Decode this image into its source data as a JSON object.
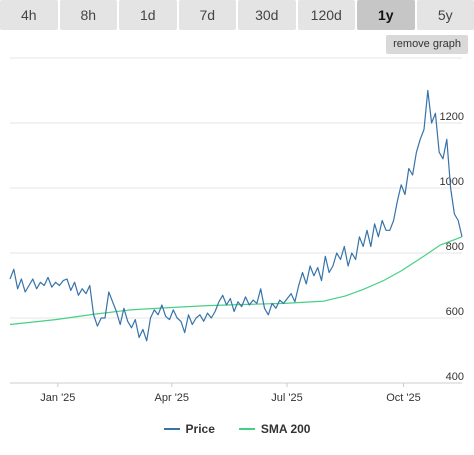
{
  "tabs": [
    {
      "label": "4h",
      "active": false
    },
    {
      "label": "8h",
      "active": false
    },
    {
      "label": "1d",
      "active": false
    },
    {
      "label": "7d",
      "active": false
    },
    {
      "label": "30d",
      "active": false
    },
    {
      "label": "120d",
      "active": false
    },
    {
      "label": "1y",
      "active": true
    },
    {
      "label": "5y",
      "active": false
    }
  ],
  "remove_graph_label": "remove graph",
  "colors": {
    "price": "#3673a9",
    "sma": "#45d185",
    "grid": "#e6e6e6",
    "axis": "#cccccc",
    "text": "#333333"
  },
  "chart_data": {
    "type": "line",
    "title": "",
    "xlabel": "",
    "ylabel": "",
    "x_ticks": [
      "Jan '25",
      "Apr '25",
      "Jul '25",
      "Oct '25"
    ],
    "y_ticks": [
      400,
      600,
      800,
      1000,
      1200
    ],
    "ylim": [
      400,
      1400
    ],
    "xlim": [
      "2024-12-10",
      "2025-12-02"
    ],
    "grid": true,
    "legend_position": "bottom",
    "series": [
      {
        "name": "Price",
        "color": "#3673a9",
        "x": [
          "2024-12-10",
          "2024-12-13",
          "2024-12-16",
          "2024-12-19",
          "2024-12-22",
          "2024-12-25",
          "2024-12-28",
          "2024-12-31",
          "2025-01-03",
          "2025-01-06",
          "2025-01-09",
          "2025-01-12",
          "2025-01-15",
          "2025-01-18",
          "2025-01-21",
          "2025-01-24",
          "2025-01-27",
          "2025-01-30",
          "2025-02-02",
          "2025-02-05",
          "2025-02-08",
          "2025-02-11",
          "2025-02-14",
          "2025-02-17",
          "2025-02-20",
          "2025-02-23",
          "2025-02-26",
          "2025-03-01",
          "2025-03-04",
          "2025-03-07",
          "2025-03-10",
          "2025-03-13",
          "2025-03-16",
          "2025-03-19",
          "2025-03-22",
          "2025-03-25",
          "2025-03-28",
          "2025-03-31",
          "2025-04-03",
          "2025-04-06",
          "2025-04-09",
          "2025-04-12",
          "2025-04-15",
          "2025-04-18",
          "2025-04-21",
          "2025-04-24",
          "2025-04-27",
          "2025-04-30",
          "2025-05-03",
          "2025-05-06",
          "2025-05-09",
          "2025-05-12",
          "2025-05-15",
          "2025-05-18",
          "2025-05-21",
          "2025-05-24",
          "2025-05-27",
          "2025-05-30",
          "2025-06-02",
          "2025-06-05",
          "2025-06-08",
          "2025-06-11",
          "2025-06-14",
          "2025-06-17",
          "2025-06-20",
          "2025-06-23",
          "2025-06-26",
          "2025-06-29",
          "2025-07-02",
          "2025-07-05",
          "2025-07-08",
          "2025-07-11",
          "2025-07-14",
          "2025-07-17",
          "2025-07-20",
          "2025-07-23",
          "2025-07-26",
          "2025-07-29",
          "2025-08-01",
          "2025-08-04",
          "2025-08-07",
          "2025-08-10",
          "2025-08-13",
          "2025-08-16",
          "2025-08-19",
          "2025-08-22",
          "2025-08-25",
          "2025-08-28",
          "2025-08-31",
          "2025-09-03",
          "2025-09-06",
          "2025-09-09",
          "2025-09-12",
          "2025-09-15",
          "2025-09-18",
          "2025-09-21",
          "2025-09-24",
          "2025-09-27",
          "2025-09-30",
          "2025-10-03",
          "2025-10-06",
          "2025-10-09",
          "2025-10-12",
          "2025-10-15",
          "2025-10-18",
          "2025-10-21",
          "2025-10-24",
          "2025-10-27",
          "2025-10-30",
          "2025-11-02",
          "2025-11-05",
          "2025-11-08",
          "2025-11-11",
          "2025-11-14",
          "2025-11-17",
          "2025-11-20",
          "2025-11-23",
          "2025-11-26",
          "2025-11-29",
          "2025-12-02"
        ],
        "values": [
          720,
          750,
          690,
          720,
          680,
          700,
          720,
          690,
          710,
          700,
          725,
          695,
          710,
          700,
          715,
          720,
          685,
          710,
          670,
          690,
          675,
          700,
          610,
          575,
          600,
          600,
          680,
          650,
          620,
          580,
          630,
          590,
          570,
          595,
          540,
          565,
          530,
          600,
          625,
          610,
          640,
          605,
          595,
          625,
          600,
          590,
          555,
          610,
          580,
          600,
          610,
          590,
          615,
          600,
          620,
          650,
          670,
          640,
          660,
          620,
          650,
          635,
          665,
          640,
          655,
          645,
          690,
          630,
          610,
          645,
          630,
          655,
          645,
          660,
          675,
          650,
          700,
          740,
          705,
          760,
          730,
          755,
          715,
          790,
          740,
          760,
          800,
          780,
          820,
          760,
          800,
          780,
          850,
          820,
          870,
          820,
          890,
          850,
          900,
          870,
          870,
          900,
          960,
          1010,
          980,
          1060,
          1040,
          1110,
          1150,
          1180,
          1300,
          1200,
          1230,
          1110,
          1090,
          1150,
          1000,
          920,
          900,
          850
        ]
      },
      {
        "name": "SMA 200",
        "color": "#45d185",
        "x": [
          "2024-12-10",
          "2025-01-15",
          "2025-02-15",
          "2025-03-15",
          "2025-04-15",
          "2025-05-15",
          "2025-06-15",
          "2025-07-15",
          "2025-08-15",
          "2025-09-01",
          "2025-09-15",
          "2025-10-01",
          "2025-10-15",
          "2025-11-01",
          "2025-11-15",
          "2025-12-02"
        ],
        "values": [
          580,
          595,
          612,
          625,
          632,
          638,
          642,
          645,
          652,
          668,
          688,
          715,
          745,
          788,
          825,
          850
        ]
      }
    ]
  },
  "legend": {
    "price_label": "Price",
    "sma_label": "SMA 200"
  }
}
